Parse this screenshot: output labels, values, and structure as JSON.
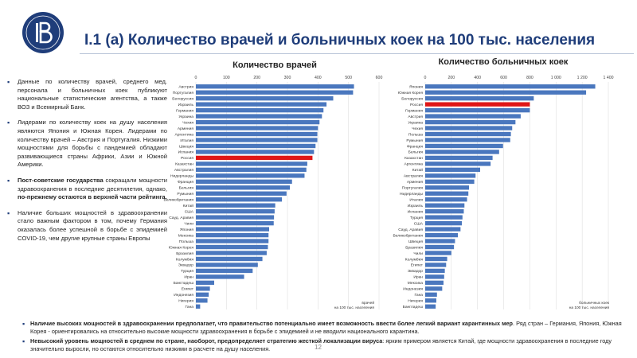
{
  "slide_title": "I.1 (а) Количество врачей и больничных коек на 100 тыс. населения",
  "page_number": "12",
  "colors": {
    "bar": "#4a77be",
    "highlight": "#e01616",
    "title": "#1f3d7a",
    "grid": "#d8d8d8"
  },
  "icons": {
    "logo": "hse-logo-icon"
  },
  "bullets": [
    {
      "plain": "Данные по количеству врачей, среднего мед. персонала и больничных коек публикуют национальные статистические агентства, а также ВОЗ и Всемирный Банк."
    },
    {
      "plain": "Лидерами по количеству коек на душу населения являются Япония и Южная Корея. Лидерами по количеству врачей – Австрия и Португалия. Низкими мощностями для борьбы с пандемией обладают развивающиеся страны Африки, Азии и Южной Америки."
    },
    {
      "bold1": "Пост-советские государства",
      "plain": " сокращали мощности здравоохранения в последние десятилетия, однако, ",
      "bold2": "по-прежнему остаются в верхней части рейтинга."
    },
    {
      "plain": "Наличие больших мощностей в здравоохранении стало важным фактором в том, почему Германия оказалась более успешной в борьбе с эпидемией COVID-19, чем другие крупные страны Европы"
    }
  ],
  "footer": [
    {
      "bold": "Наличие высоких мощностей в здравоохранении предполагает, что правительство потенциально имеет возможность ввести более легкий вариант карантинных мер",
      "plain": ". Ряд стран – Германия, Япония, Южная Корея - ориентировались на относительно высокие мощности здравоохранения в борьбе с эпидемией и не вводили национального карантина."
    },
    {
      "bold": "Невысокий уровень мощностей в среднем по стране, наоборот, предопределяет стратегию жесткой локализации вируса",
      "plain": ": ярким примером является Китай, где мощности здравоохранения в последние году значительно выросли, но остаются относительно низкими в расчете на душу населения."
    }
  ],
  "chart_data": [
    {
      "type": "bar",
      "orientation": "horizontal",
      "title": "Количество врачей",
      "xlim": [
        0,
        600
      ],
      "xticks": [
        "0",
        "100",
        "200",
        "300",
        "400",
        "500",
        "600"
      ],
      "highlight": "Россия",
      "legend": [
        "врачей",
        "на 100 тыс. населения"
      ],
      "categories": [
        "Австрия",
        "Португалия",
        "Белоруссия",
        "Израиль",
        "Германия",
        "Украина",
        "Чехия",
        "Армения",
        "Аргентина",
        "Италия",
        "Швеция",
        "Испания",
        "Россия",
        "Казахстан",
        "Австралия",
        "Нидерланды",
        "Франция",
        "Бельгия",
        "Румыния",
        "Великобритания",
        "Китай",
        "США",
        "Сауд. Аравия",
        "Чили",
        "Япония",
        "Мексика",
        "Польша",
        "Южная Корея",
        "Бразилия",
        "Колумбия",
        "Эквадор",
        "Турция",
        "Иран",
        "Бангладеш",
        "Египет",
        "Индонезия",
        "Нигерия",
        "Гана"
      ],
      "values": [
        518,
        515,
        450,
        428,
        418,
        413,
        405,
        400,
        398,
        398,
        392,
        387,
        382,
        365,
        362,
        356,
        315,
        308,
        297,
        282,
        260,
        258,
        256,
        255,
        240,
        238,
        238,
        236,
        232,
        218,
        203,
        186,
        158,
        60,
        46,
        42,
        38,
        14
      ]
    },
    {
      "type": "bar",
      "orientation": "horizontal",
      "title": "Количество больничных коек",
      "xlim": [
        0,
        1400
      ],
      "xticks": [
        "0",
        "200",
        "400",
        "600",
        "800",
        "1 000",
        "1 200",
        "1 400"
      ],
      "highlight": "Россия",
      "legend": [
        "больничных коек",
        "на 100 тыс. населения"
      ],
      "categories": [
        "Япония",
        "Южная Корея",
        "Белоруссия",
        "Россия",
        "Германия",
        "Австрия",
        "Украина",
        "Чехия",
        "Польша",
        "Румыния",
        "Франция",
        "Бельгия",
        "Казахстан",
        "Аргентина",
        "Китай",
        "Австралия",
        "Армения",
        "Португалия",
        "Нидерланды",
        "Италия",
        "Израиль",
        "Испания",
        "Турция",
        "США",
        "Сауд. Аравия",
        "Великобритания",
        "Швеция",
        "Бразилия",
        "Чили",
        "Колумбия",
        "Египет",
        "Эквадор",
        "Иран",
        "Мексика",
        "Индонезия",
        "Гана",
        "Нигерия",
        "Бангладеш"
      ],
      "values": [
        1300,
        1230,
        830,
        800,
        800,
        730,
        690,
        665,
        655,
        650,
        595,
        565,
        515,
        500,
        420,
        385,
        375,
        335,
        330,
        320,
        300,
        295,
        285,
        280,
        270,
        250,
        228,
        220,
        200,
        168,
        160,
        150,
        145,
        140,
        130,
        90,
        85,
        80
      ]
    }
  ]
}
